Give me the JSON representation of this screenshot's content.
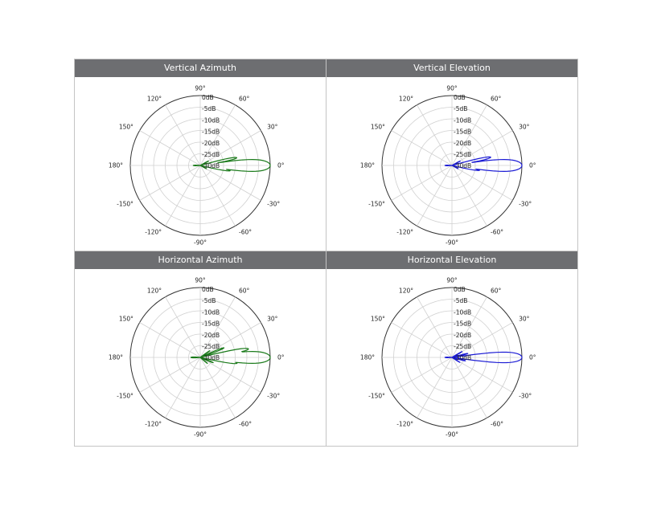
{
  "chart_data": [
    {
      "type": "polar",
      "title": "Vertical Azimuth",
      "color": "#1a7a1a",
      "angle_labels": [
        "0°",
        "30°",
        "60°",
        "90°",
        "120°",
        "150°",
        "180°",
        "-150°",
        "-120°",
        "-90°",
        "-60°",
        "-30°"
      ],
      "radial_labels": [
        "0dB",
        "-5dB",
        "-10dB",
        "-15dB",
        "-20dB",
        "-25dB",
        "-30dB"
      ],
      "rlim": [
        -30,
        0
      ],
      "grid": true,
      "series": [
        {
          "lobes": [
            {
              "angle": 0,
              "level": 0,
              "width": 9
            },
            {
              "angle": 12,
              "level": -14,
              "width": 4
            },
            {
              "angle": -10,
              "level": -17,
              "width": 4
            },
            {
              "angle": 28,
              "level": -26,
              "width": 4
            },
            {
              "angle": -28,
              "level": -27,
              "width": 4
            },
            {
              "angle": 180,
              "level": -27,
              "width": 12
            }
          ]
        }
      ]
    },
    {
      "type": "polar",
      "title": "Vertical Elevation",
      "color": "#1a1ad4",
      "angle_labels": [
        "0°",
        "30°",
        "60°",
        "90°",
        "120°",
        "150°",
        "180°",
        "-150°",
        "-120°",
        "-90°",
        "-60°",
        "-30°"
      ],
      "radial_labels": [
        "0dB",
        "-5dB",
        "-10dB",
        "-15dB",
        "-20dB",
        "-25dB",
        "-30dB"
      ],
      "rlim": [
        -30,
        0
      ],
      "grid": true,
      "series": [
        {
          "lobes": [
            {
              "angle": 0,
              "level": 0,
              "width": 9
            },
            {
              "angle": 12,
              "level": -13,
              "width": 4
            },
            {
              "angle": -10,
              "level": -18,
              "width": 4
            },
            {
              "angle": 28,
              "level": -26,
              "width": 4
            },
            {
              "angle": -28,
              "level": -27,
              "width": 4
            },
            {
              "angle": 180,
              "level": -27,
              "width": 12
            }
          ]
        }
      ]
    },
    {
      "type": "polar",
      "title": "Horizontal Azimuth",
      "color": "#1a7a1a",
      "angle_labels": [
        "0°",
        "30°",
        "60°",
        "90°",
        "120°",
        "150°",
        "180°",
        "-150°",
        "-120°",
        "-90°",
        "-60°",
        "-30°"
      ],
      "radial_labels": [
        "0dB",
        "-5dB",
        "-10dB",
        "-15dB",
        "-20dB",
        "-25dB",
        "-30dB"
      ],
      "rlim": [
        -30,
        0
      ],
      "grid": true,
      "series": [
        {
          "lobes": [
            {
              "angle": 0,
              "level": 0,
              "width": 9
            },
            {
              "angle": 10,
              "level": -9,
              "width": 4
            },
            {
              "angle": -9,
              "level": -14,
              "width": 4
            },
            {
              "angle": 22,
              "level": -19,
              "width": 4
            },
            {
              "angle": -22,
              "level": -24,
              "width": 4
            },
            {
              "angle": 35,
              "level": -25,
              "width": 4
            },
            {
              "angle": -40,
              "level": -26,
              "width": 4
            },
            {
              "angle": 180,
              "level": -26,
              "width": 12
            }
          ]
        }
      ]
    },
    {
      "type": "polar",
      "title": "Horizontal Elevation",
      "color": "#1a1ad4",
      "angle_labels": [
        "0°",
        "30°",
        "60°",
        "90°",
        "120°",
        "150°",
        "180°",
        "-150°",
        "-120°",
        "-90°",
        "-60°",
        "-30°"
      ],
      "radial_labels": [
        "0dB",
        "-5dB",
        "-10dB",
        "-15dB",
        "-20dB",
        "-25dB",
        "-30dB"
      ],
      "rlim": [
        -30,
        0
      ],
      "grid": true,
      "series": [
        {
          "lobes": [
            {
              "angle": 0,
              "level": 0,
              "width": 8
            },
            {
              "angle": 14,
              "level": -23,
              "width": 4
            },
            {
              "angle": -14,
              "level": -24,
              "width": 4
            },
            {
              "angle": 30,
              "level": -25,
              "width": 4
            },
            {
              "angle": -32,
              "level": -26,
              "width": 4
            },
            {
              "angle": 180,
              "level": -27,
              "width": 12
            }
          ]
        }
      ]
    }
  ]
}
